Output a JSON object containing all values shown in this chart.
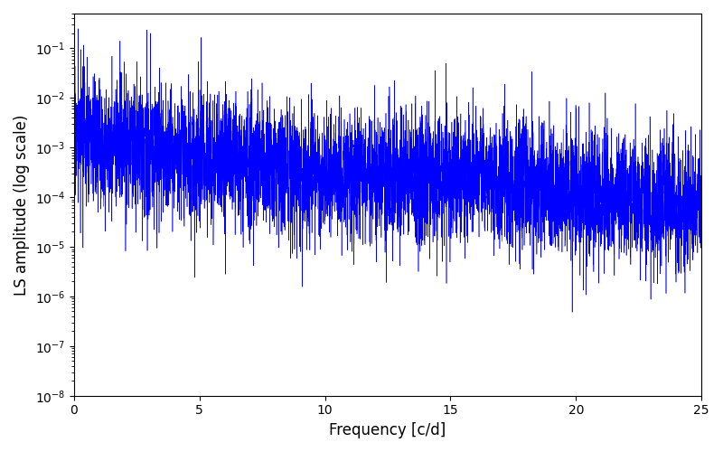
{
  "title": "",
  "xlabel": "Frequency [c/d]",
  "ylabel": "LS amplitude (log scale)",
  "xlim": [
    0,
    25
  ],
  "ylim_low": 1e-08,
  "ylim_high": 0.5,
  "line_color": "#0000ff",
  "line_width": 0.4,
  "background_color": "#ffffff",
  "figsize": [
    8.0,
    5.0
  ],
  "dpi": 100,
  "yscale": "log",
  "freq_min": 0.0,
  "freq_max": 25.0,
  "n_points": 6000,
  "seed": 17,
  "main_peak_freq": 3.05,
  "main_peak_amp": 0.2
}
